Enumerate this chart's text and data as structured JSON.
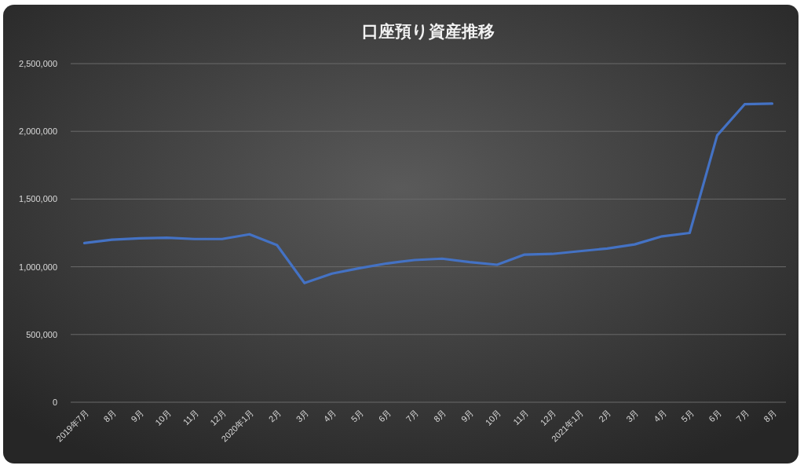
{
  "chart_data": {
    "type": "line",
    "title": "口座預り資産推移",
    "categories": [
      "2019年7月",
      "8月",
      "9月",
      "10月",
      "11月",
      "12月",
      "2020年1月",
      "2月",
      "3月",
      "4月",
      "5月",
      "6月",
      "7月",
      "8月",
      "9月",
      "10月",
      "11月",
      "12月",
      "2021年1月",
      "2月",
      "3月",
      "4月",
      "5月",
      "6月",
      "7月",
      "8月"
    ],
    "series": [
      {
        "color": "#4472c4",
        "values": [
          1175000,
          1200000,
          1210000,
          1215000,
          1205000,
          1205000,
          1240000,
          1160000,
          880000,
          950000,
          990000,
          1025000,
          1050000,
          1060000,
          1035000,
          1015000,
          1090000,
          1095000,
          1115000,
          1135000,
          1165000,
          1225000,
          1250000,
          1970000,
          2200000,
          2205000
        ]
      }
    ],
    "ylim": [
      0,
      2500000
    ],
    "yticks": [
      {
        "value": 0,
        "label": "0"
      },
      {
        "value": 500000,
        "label": "500,000"
      },
      {
        "value": 1000000,
        "label": "1,000,000"
      },
      {
        "value": 1500000,
        "label": "1,500,000"
      },
      {
        "value": 2000000,
        "label": "2,000,000"
      },
      {
        "value": 2500000,
        "label": "2,500,000"
      }
    ],
    "grid": "y",
    "marker": "none",
    "line_style": "solid"
  }
}
